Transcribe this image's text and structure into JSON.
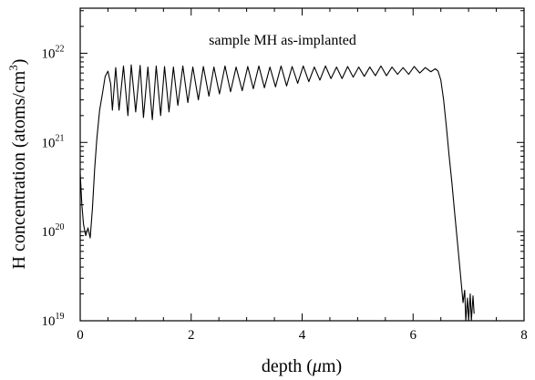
{
  "chart_data": {
    "type": "line",
    "annotation": "sample MH as-implanted",
    "xlabel": {
      "prefix": "depth (",
      "symbol": "μ",
      "suffix": "m)"
    },
    "ylabel": {
      "prefix": "H concentration (atoms/cm",
      "exponent": "3",
      "suffix": ")"
    },
    "xlim": [
      0,
      8
    ],
    "ylim": [
      1e+19,
      3.2e+22
    ],
    "y_scale": "log",
    "grid": false,
    "x_ticks": [
      "0",
      "2",
      "4",
      "6",
      "8"
    ],
    "y_ticks": [
      {
        "base": "10",
        "exp": "19",
        "value": 1e+19
      },
      {
        "base": "10",
        "exp": "20",
        "value": 1e+20
      },
      {
        "base": "10",
        "exp": "21",
        "value": 1e+21
      },
      {
        "base": "10",
        "exp": "22",
        "value": 1e+22
      }
    ],
    "series": [
      {
        "color": "#000000",
        "x": [
          0.0,
          0.03,
          0.06,
          0.1,
          0.14,
          0.18,
          0.22,
          0.26,
          0.3,
          0.35,
          0.4,
          0.45,
          0.5,
          0.55,
          0.58,
          0.64,
          0.7,
          0.78,
          0.86,
          0.92,
          1.0,
          1.08,
          1.14,
          1.22,
          1.3,
          1.37,
          1.45,
          1.52,
          1.6,
          1.68,
          1.76,
          1.85,
          1.94,
          2.03,
          2.13,
          2.22,
          2.32,
          2.41,
          2.51,
          2.61,
          2.71,
          2.81,
          2.92,
          3.02,
          3.12,
          3.22,
          3.32,
          3.42,
          3.52,
          3.62,
          3.72,
          3.82,
          3.92,
          4.02,
          4.12,
          4.22,
          4.32,
          4.42,
          4.52,
          4.62,
          4.72,
          4.82,
          4.92,
          5.02,
          5.12,
          5.22,
          5.32,
          5.42,
          5.52,
          5.62,
          5.72,
          5.82,
          5.92,
          6.02,
          6.12,
          6.22,
          6.32,
          6.4,
          6.45,
          6.5,
          6.55,
          6.6,
          6.65,
          6.7,
          6.75,
          6.8,
          6.85,
          6.9,
          6.93,
          6.95,
          6.98,
          7.0,
          7.03,
          7.05,
          7.08,
          7.1
        ],
        "y": [
          4.5e+20,
          2e+20,
          1.2e+20,
          9e+19,
          1.1e+20,
          8.5e+19,
          1.8e+20,
          5e+20,
          1.1e+21,
          2.3e+21,
          3.5e+21,
          5.5e+21,
          6.3e+21,
          4.5e+21,
          2.3e+21,
          6.9e+21,
          2.3e+21,
          7.2e+21,
          2e+21,
          7.4e+21,
          2.2e+21,
          7.3e+21,
          1.9e+21,
          7e+21,
          1.8e+21,
          7.2e+21,
          2e+21,
          7.1e+21,
          2.2e+21,
          7e+21,
          2.6e+21,
          7.2e+21,
          2.8e+21,
          7e+21,
          3e+21,
          7.1e+21,
          3.3e+21,
          7e+21,
          3.5e+21,
          7.2e+21,
          3.7e+21,
          7e+21,
          3.8e+21,
          7.1e+21,
          4e+21,
          7.2e+21,
          4.1e+21,
          7e+21,
          4.2e+21,
          7.2e+21,
          4.3e+21,
          7.1e+21,
          4.6e+21,
          7.2e+21,
          4.8e+21,
          7e+21,
          5e+21,
          7.2e+21,
          5.2e+21,
          7e+21,
          5.2e+21,
          7.1e+21,
          5.4e+21,
          7e+21,
          5.5e+21,
          7e+21,
          5.6e+21,
          7.2e+21,
          5.6e+21,
          7e+21,
          5.8e+21,
          6.9e+21,
          5.8e+21,
          7.1e+21,
          6e+21,
          6.9e+21,
          6.2e+21,
          6.7e+21,
          6.3e+21,
          5e+21,
          3e+21,
          1.5e+21,
          7e+20,
          3.5e+20,
          1.6e+20,
          7.5e+19,
          3.5e+19,
          1.6e+19,
          2.2e+19,
          1e+19,
          1.8e+19,
          1e+19,
          2e+19,
          1e+19,
          1.9e+19,
          1.2e+19
        ]
      }
    ]
  }
}
